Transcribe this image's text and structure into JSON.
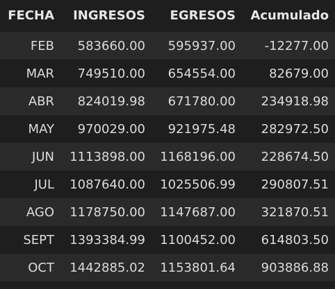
{
  "table": {
    "headers": [
      "FECHA",
      "INGRESOS",
      "EGRESOS",
      "Acumulado"
    ],
    "rows": [
      [
        "FEB",
        "583660.00",
        "595937.00",
        "-12277.00"
      ],
      [
        "MAR",
        "749510.00",
        "654554.00",
        "82679.00"
      ],
      [
        "ABR",
        "824019.98",
        "671780.00",
        "234918.98"
      ],
      [
        "MAY",
        "970029.00",
        "921975.48",
        "282972.50"
      ],
      [
        "JUN",
        "1113898.00",
        "1168196.00",
        "228674.50"
      ],
      [
        "JUL",
        "1087640.00",
        "1025506.99",
        "290807.51"
      ],
      [
        "AGO",
        "1178750.00",
        "1147687.00",
        "321870.51"
      ],
      [
        "SEPT",
        "1393384.99",
        "1100452.00",
        "614803.50"
      ],
      [
        "OCT",
        "1442885.02",
        "1153801.64",
        "903886.88"
      ]
    ]
  },
  "colors": {
    "background": "#1e1e1e",
    "row_stripe": "#2a2a2a",
    "text": "#dcdcdc"
  }
}
